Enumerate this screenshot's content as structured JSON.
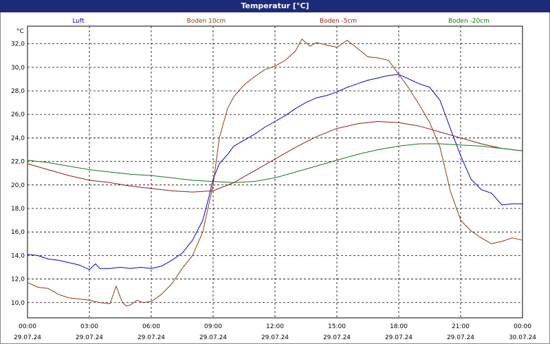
{
  "window": {
    "title": "Temperatur [°C]"
  },
  "chart_data": {
    "type": "line",
    "title": "Temperatur [°C]",
    "ylabel": "°C",
    "ylim": [
      8.7,
      33.5
    ],
    "xlim": [
      0,
      24
    ],
    "grid": true,
    "legend_position": "top",
    "y_ticks": [
      "10,0",
      "12,0",
      "14,0",
      "16,0",
      "18,0",
      "20,0",
      "22,0",
      "24,0",
      "26,0",
      "28,0",
      "30,0",
      "32,0"
    ],
    "y_tick_values": [
      10,
      12,
      14,
      16,
      18,
      20,
      22,
      24,
      26,
      28,
      30,
      32
    ],
    "x_tick_values": [
      0,
      3,
      6,
      9,
      12,
      15,
      18,
      21,
      24
    ],
    "x_ticks": [
      {
        "time": "00:00",
        "date": "29.07.24"
      },
      {
        "time": "03:00",
        "date": "29.07.24"
      },
      {
        "time": "06:00",
        "date": "29.07.24"
      },
      {
        "time": "09:00",
        "date": "29.07.24"
      },
      {
        "time": "12:00",
        "date": "29.07.24"
      },
      {
        "time": "15:00",
        "date": "29.07.24"
      },
      {
        "time": "18:00",
        "date": "29.07.24"
      },
      {
        "time": "21:00",
        "date": "29.07.24"
      },
      {
        "time": "00:00",
        "date": "30.07.24"
      }
    ],
    "series": [
      {
        "name": "Luft",
        "color": "#0000cc",
        "x": [
          0,
          0.5,
          1,
          1.5,
          2,
          2.5,
          3,
          3.3,
          3.5,
          4,
          4.5,
          5,
          5.5,
          6,
          6.5,
          7,
          7.5,
          8,
          8.5,
          8.8,
          9,
          9.3,
          9.7,
          10,
          10.5,
          11,
          11.5,
          12,
          12.5,
          13,
          13.5,
          14,
          14.5,
          15,
          15.5,
          16,
          16.5,
          17,
          17.5,
          18,
          18.5,
          19,
          19.5,
          20,
          20.5,
          21,
          21.5,
          22,
          22.5,
          23,
          23.5,
          24
        ],
        "y": [
          14.1,
          14,
          13.7,
          13.6,
          13.4,
          13.2,
          12.8,
          13.3,
          12.9,
          12.9,
          13,
          12.9,
          13,
          12.9,
          13.1,
          13.6,
          14.2,
          15.3,
          17,
          19,
          20.5,
          21.8,
          22.6,
          23.3,
          23.8,
          24.3,
          24.9,
          25.4,
          25.9,
          26.5,
          27,
          27.4,
          27.6,
          27.9,
          28.3,
          28.6,
          28.9,
          29.1,
          29.3,
          29.4,
          29,
          28.6,
          28.3,
          27.2,
          24.8,
          22.5,
          20.5,
          19.6,
          19.3,
          18.3,
          18.4,
          18.4
        ]
      },
      {
        "name": "Boden 10cm",
        "color": "#8b3a0a",
        "x": [
          0,
          0.5,
          1,
          1.5,
          2,
          2.5,
          3,
          3.5,
          4,
          4.3,
          4.6,
          4.8,
          5,
          5.3,
          5.6,
          6,
          6.5,
          7,
          7.5,
          8,
          8.5,
          9,
          9.3,
          9.7,
          10,
          10.5,
          11,
          11.5,
          12,
          12.5,
          13,
          13.3,
          13.7,
          14,
          14.5,
          15,
          15.5,
          16,
          16.5,
          17,
          17.5,
          18,
          18.5,
          19,
          19.5,
          20,
          20.5,
          21,
          21.5,
          22,
          22.5,
          23,
          23.5,
          24
        ],
        "y": [
          11.7,
          11.3,
          11.2,
          10.7,
          10.4,
          10.3,
          10.2,
          10,
          9.9,
          11.4,
          10,
          9.7,
          9.8,
          10.2,
          10,
          10.1,
          10.7,
          11.6,
          12.9,
          14,
          16,
          20,
          24,
          26.5,
          27.5,
          28.5,
          29.2,
          29.8,
          30.1,
          30.6,
          31.4,
          32.4,
          31.8,
          32.1,
          31.9,
          31.7,
          32.3,
          31.6,
          30.9,
          30.8,
          30.6,
          29.4,
          28.2,
          26.8,
          25.3,
          23.2,
          19.5,
          17,
          16.1,
          15.5,
          15,
          15.2,
          15.5,
          15.3
        ]
      },
      {
        "name": "Boden -5cm",
        "color": "#8b1a1a",
        "x": [
          0,
          1,
          2,
          3,
          4,
          5,
          6,
          7,
          8,
          9,
          10,
          11,
          12,
          13,
          14,
          15,
          16,
          17,
          18,
          19,
          20,
          21,
          22,
          23,
          24
        ],
        "y": [
          21.8,
          21.3,
          20.8,
          20.4,
          20.2,
          19.9,
          19.7,
          19.5,
          19.4,
          19.5,
          20.2,
          21.2,
          22.2,
          23.2,
          24.1,
          24.8,
          25.2,
          25.4,
          25.3,
          25,
          24.5,
          24,
          23.5,
          23.1,
          22.9
        ]
      },
      {
        "name": "Boden -20cm",
        "color": "#117711",
        "x": [
          0,
          1,
          2,
          3,
          4,
          5,
          6,
          7,
          8,
          9,
          10,
          11,
          12,
          13,
          14,
          15,
          16,
          17,
          18,
          19,
          20,
          21,
          22,
          23,
          24
        ],
        "y": [
          22.1,
          21.9,
          21.6,
          21.3,
          21.1,
          20.9,
          20.8,
          20.6,
          20.4,
          20.3,
          20.2,
          20.3,
          20.6,
          21.1,
          21.6,
          22.1,
          22.6,
          23,
          23.3,
          23.5,
          23.5,
          23.4,
          23.3,
          23.1,
          22.9
        ]
      }
    ]
  }
}
